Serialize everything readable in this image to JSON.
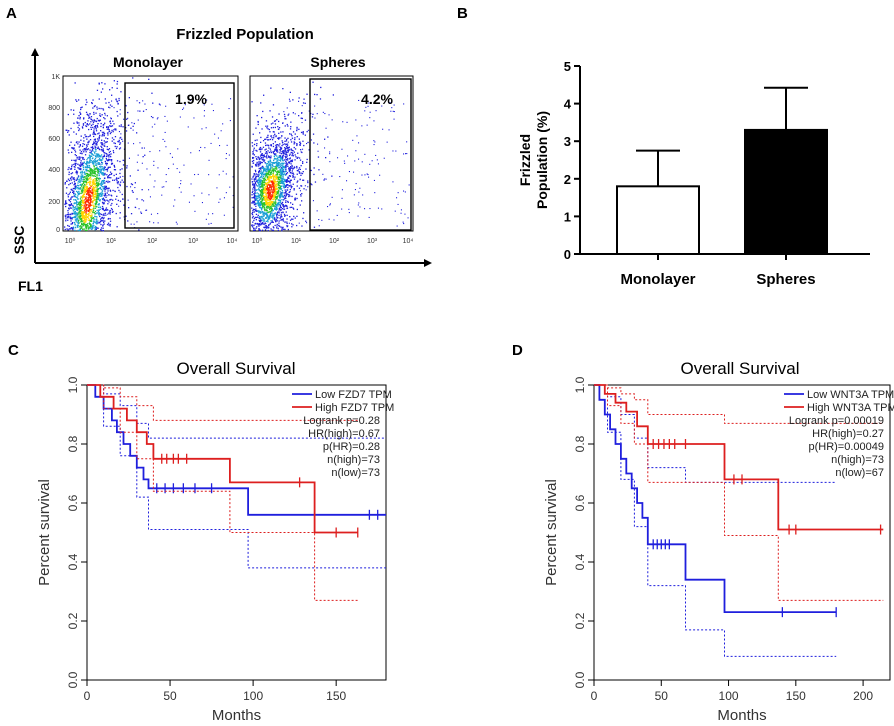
{
  "panel_letters": {
    "a": "A",
    "b": "B",
    "c": "C",
    "d": "D"
  },
  "colors": {
    "blue": "#1f1fdd",
    "red": "#dd1f1f",
    "black": "#000000"
  },
  "flow": {
    "title": "Frizzled Population",
    "ylabel": "SSC",
    "xlabel": "FL1",
    "y_ticks": [
      "1K",
      "800",
      "600",
      "400",
      "200",
      "0"
    ],
    "x_ticks": [
      "10⁰",
      "10¹",
      "10²",
      "10³",
      "10⁴"
    ],
    "plots": [
      {
        "label": "Monolayer",
        "gate_percent": "1.9%"
      },
      {
        "label": "Spheres",
        "gate_percent": "4.2%"
      }
    ]
  },
  "chart_data": [
    {
      "id": "B",
      "type": "bar",
      "ylabel": "Frizzled Population (%)",
      "ylabel_lines": [
        "Frizzled",
        "Population (%)"
      ],
      "categories": [
        "Monolayer",
        "Spheres"
      ],
      "values": [
        1.8,
        3.3
      ],
      "errors": [
        0.95,
        1.12
      ],
      "fills": [
        "#ffffff",
        "#000000"
      ],
      "ylim": [
        0,
        5
      ],
      "yticks": [
        "0",
        "1",
        "2",
        "3",
        "4",
        "5"
      ]
    },
    {
      "id": "C",
      "type": "line",
      "title": "Overall Survival",
      "xlabel": "Months",
      "ylabel": "Percent survival",
      "xlim": [
        0,
        180
      ],
      "ylim": [
        0,
        1
      ],
      "xticks": [
        "0",
        "50",
        "100",
        "150"
      ],
      "yticks": [
        "0.0",
        "0.2",
        "0.4",
        "0.6",
        "0.8",
        "1.0"
      ],
      "legend": [
        "Low FZD7 TPM",
        "High FZD7 TPM"
      ],
      "stats": [
        "Logrank p=0.28",
        "HR(high)=0.67",
        "p(HR)=0.28",
        "n(high)=73",
        "n(low)=73"
      ],
      "series": [
        {
          "name": "Low FZD7 TPM",
          "color": "blue",
          "t": [
            0,
            5,
            10,
            15,
            18,
            22,
            26,
            30,
            34,
            37,
            97,
            180
          ],
          "s": [
            1.0,
            0.96,
            0.92,
            0.88,
            0.84,
            0.8,
            0.76,
            0.72,
            0.68,
            0.65,
            0.56,
            0.56
          ],
          "censor": [
            [
              42,
              0.65
            ],
            [
              47,
              0.65
            ],
            [
              52,
              0.65
            ],
            [
              58,
              0.65
            ],
            [
              65,
              0.65
            ],
            [
              75,
              0.65
            ],
            [
              170,
              0.56
            ],
            [
              175,
              0.56
            ]
          ],
          "upper": [
            [
              0,
              1.0
            ],
            [
              10,
              0.97
            ],
            [
              20,
              0.93
            ],
            [
              30,
              0.87
            ],
            [
              37,
              0.82
            ],
            [
              97,
              0.82
            ],
            [
              180,
              0.82
            ]
          ],
          "lower": [
            [
              0,
              1.0
            ],
            [
              10,
              0.86
            ],
            [
              20,
              0.76
            ],
            [
              30,
              0.62
            ],
            [
              37,
              0.51
            ],
            [
              97,
              0.38
            ],
            [
              180,
              0.38
            ]
          ]
        },
        {
          "name": "High FZD7 TPM",
          "color": "red",
          "t": [
            0,
            8,
            16,
            24,
            30,
            36,
            40,
            86,
            137,
            163
          ],
          "s": [
            1.0,
            0.96,
            0.92,
            0.88,
            0.84,
            0.8,
            0.75,
            0.67,
            0.5,
            0.5
          ],
          "censor": [
            [
              45,
              0.75
            ],
            [
              48,
              0.75
            ],
            [
              52,
              0.75
            ],
            [
              55,
              0.75
            ],
            [
              60,
              0.75
            ],
            [
              128,
              0.67
            ],
            [
              150,
              0.5
            ],
            [
              163,
              0.5
            ]
          ],
          "upper": [
            [
              0,
              1.0
            ],
            [
              10,
              0.99
            ],
            [
              20,
              0.96
            ],
            [
              30,
              0.93
            ],
            [
              40,
              0.88
            ],
            [
              86,
              0.88
            ],
            [
              137,
              0.88
            ],
            [
              163,
              0.88
            ]
          ],
          "lower": [
            [
              0,
              1.0
            ],
            [
              10,
              0.92
            ],
            [
              20,
              0.84
            ],
            [
              30,
              0.75
            ],
            [
              40,
              0.64
            ],
            [
              86,
              0.5
            ],
            [
              137,
              0.27
            ],
            [
              163,
              0.27
            ]
          ]
        }
      ]
    },
    {
      "id": "D",
      "type": "line",
      "title": "Overall Survival",
      "xlabel": "Months",
      "ylabel": "Percent survival",
      "xlim": [
        0,
        220
      ],
      "ylim": [
        0,
        1
      ],
      "xticks": [
        "0",
        "50",
        "100",
        "150",
        "200"
      ],
      "yticks": [
        "0.0",
        "0.2",
        "0.4",
        "0.6",
        "0.8",
        "1.0"
      ],
      "legend": [
        "Low WNT3A TPM",
        "High WNT3A TPM"
      ],
      "stats": [
        "Logrank p=0.00019",
        "HR(high)=0.27",
        "p(HR)=0.00049",
        "n(high)=73",
        "n(low)=67"
      ],
      "series": [
        {
          "name": "Low WNT3A TPM",
          "color": "blue",
          "t": [
            0,
            4,
            8,
            12,
            16,
            20,
            24,
            28,
            32,
            36,
            40,
            68,
            97,
            180
          ],
          "s": [
            1.0,
            0.95,
            0.9,
            0.85,
            0.8,
            0.75,
            0.7,
            0.65,
            0.6,
            0.55,
            0.46,
            0.34,
            0.23,
            0.23
          ],
          "censor": [
            [
              44,
              0.46
            ],
            [
              47,
              0.46
            ],
            [
              50,
              0.46
            ],
            [
              53,
              0.46
            ],
            [
              56,
              0.46
            ],
            [
              140,
              0.23
            ],
            [
              180,
              0.23
            ]
          ],
          "upper": [
            [
              0,
              1.0
            ],
            [
              10,
              0.96
            ],
            [
              20,
              0.9
            ],
            [
              30,
              0.82
            ],
            [
              40,
              0.72
            ],
            [
              68,
              0.67
            ],
            [
              97,
              0.67
            ],
            [
              180,
              0.67
            ]
          ],
          "lower": [
            [
              0,
              1.0
            ],
            [
              10,
              0.84
            ],
            [
              20,
              0.68
            ],
            [
              30,
              0.52
            ],
            [
              40,
              0.32
            ],
            [
              68,
              0.17
            ],
            [
              97,
              0.08
            ],
            [
              180,
              0.08
            ]
          ]
        },
        {
          "name": "High WNT3A TPM",
          "color": "red",
          "t": [
            0,
            8,
            16,
            24,
            32,
            40,
            97,
            137,
            215
          ],
          "s": [
            1.0,
            0.97,
            0.94,
            0.91,
            0.86,
            0.8,
            0.68,
            0.51,
            0.51
          ],
          "censor": [
            [
              44,
              0.8
            ],
            [
              48,
              0.8
            ],
            [
              52,
              0.8
            ],
            [
              56,
              0.8
            ],
            [
              60,
              0.8
            ],
            [
              68,
              0.8
            ],
            [
              104,
              0.68
            ],
            [
              110,
              0.68
            ],
            [
              145,
              0.51
            ],
            [
              150,
              0.51
            ],
            [
              213,
              0.51
            ]
          ],
          "upper": [
            [
              0,
              1.0
            ],
            [
              10,
              0.99
            ],
            [
              20,
              0.97
            ],
            [
              30,
              0.95
            ],
            [
              40,
              0.9
            ],
            [
              97,
              0.87
            ],
            [
              137,
              0.87
            ],
            [
              215,
              0.87
            ]
          ],
          "lower": [
            [
              0,
              1.0
            ],
            [
              10,
              0.93
            ],
            [
              20,
              0.87
            ],
            [
              30,
              0.8
            ],
            [
              40,
              0.67
            ],
            [
              97,
              0.49
            ],
            [
              137,
              0.27
            ],
            [
              215,
              0.27
            ]
          ]
        }
      ]
    }
  ]
}
